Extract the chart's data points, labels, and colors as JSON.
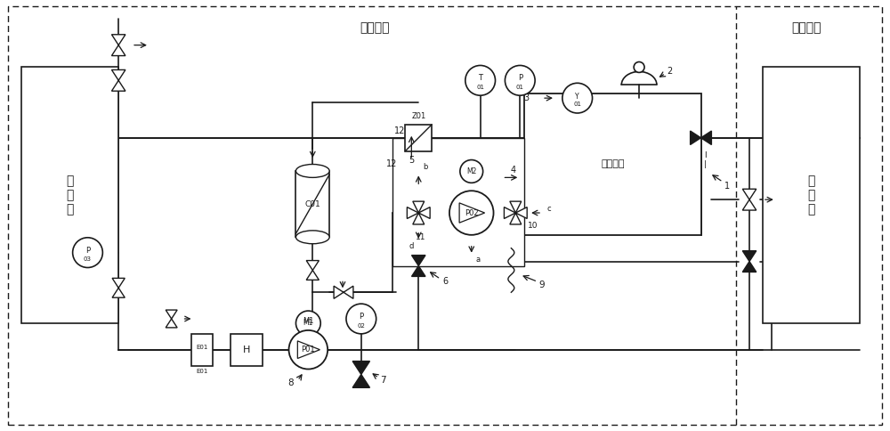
{
  "title_cooling": "冷却系统",
  "title_converter": "变流系统",
  "label_heatex": "换\n热\n器",
  "label_converter": "变\n流\n器",
  "label_coolingtank": "冷却液箱",
  "label_C01": "C01",
  "label_E01": "E01",
  "label_H": "H",
  "label_P01": "P01",
  "label_P02": "P02",
  "label_M1": "M1",
  "label_M2": "M2",
  "label_Z01": "Z01",
  "bg_color": "#ffffff",
  "line_color": "#1a1a1a",
  "fig_width": 10.0,
  "fig_height": 4.84,
  "dpi": 100
}
